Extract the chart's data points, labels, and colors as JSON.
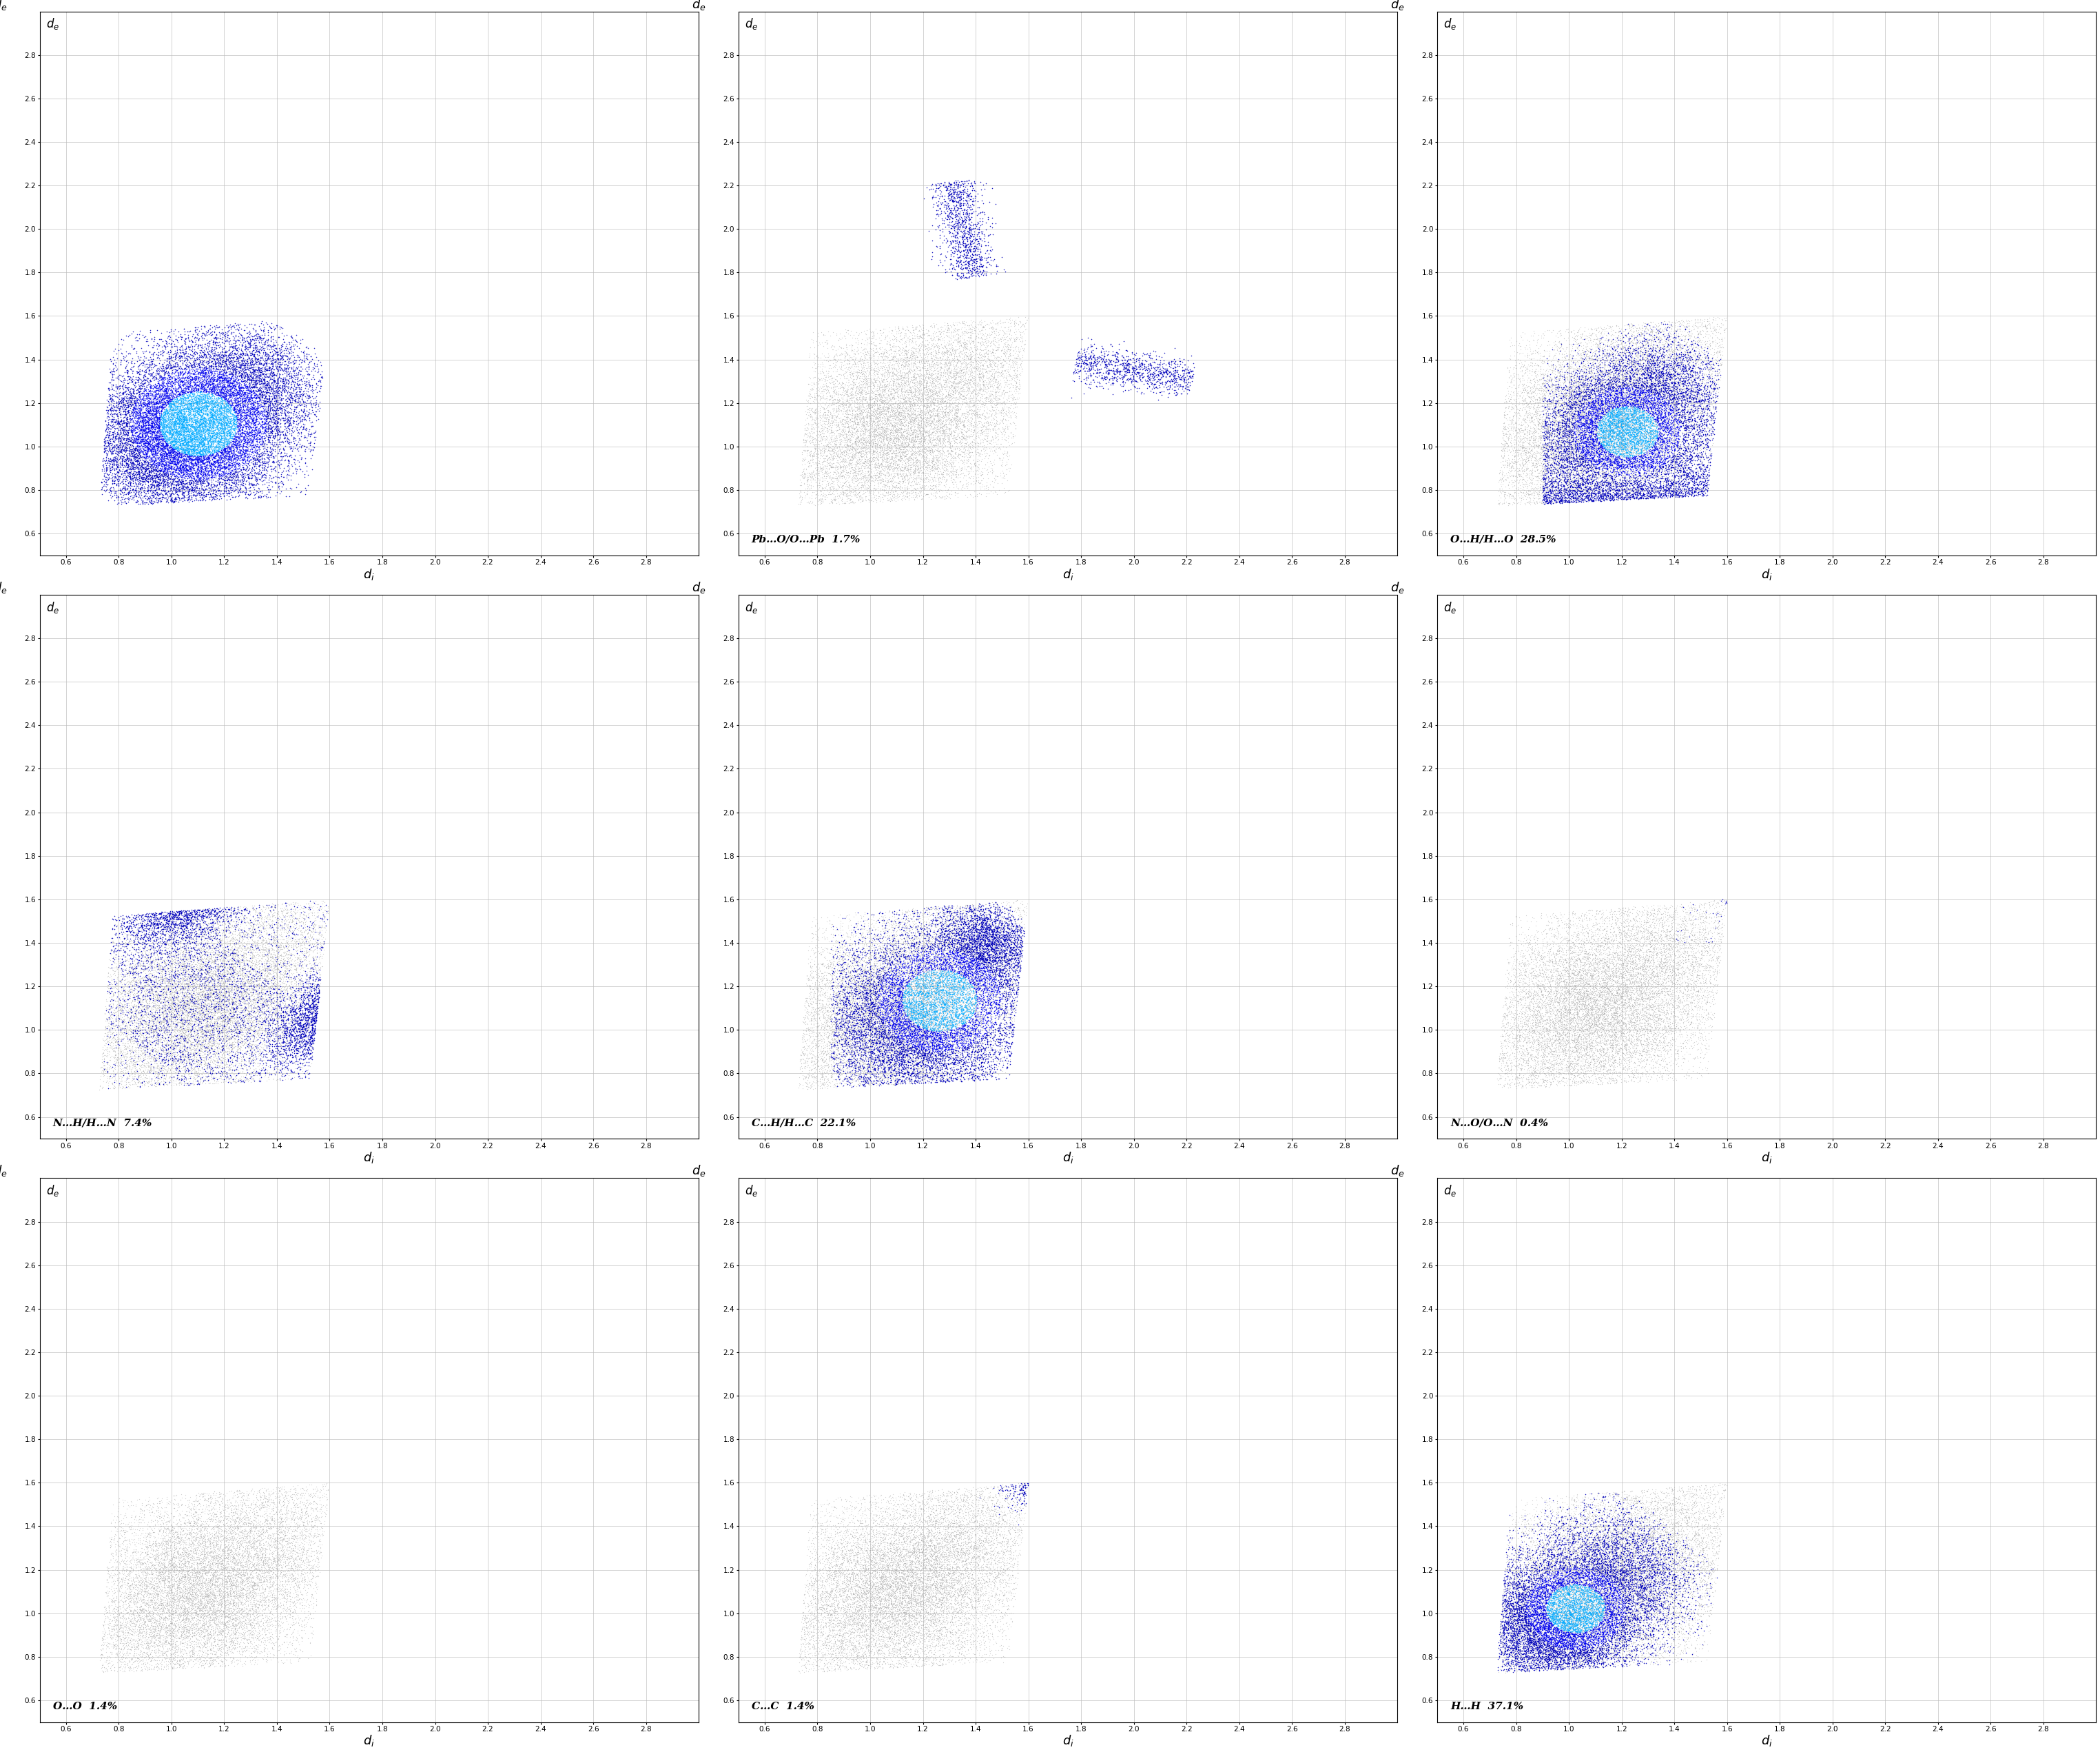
{
  "subplots": [
    {
      "label": "",
      "percentage": "",
      "row": 0,
      "col": 0
    },
    {
      "label": "Pb…O/O…Pb",
      "percentage": "1.7%",
      "row": 0,
      "col": 1
    },
    {
      "label": "O…H/H…O",
      "percentage": "28.5%",
      "row": 0,
      "col": 2
    },
    {
      "label": "N…H/H…N",
      "percentage": "7.4%",
      "row": 1,
      "col": 0
    },
    {
      "label": "C…H/H…C",
      "percentage": "22.1%",
      "row": 1,
      "col": 1
    },
    {
      "label": "N…O/O…N",
      "percentage": "0.4%",
      "row": 1,
      "col": 2
    },
    {
      "label": "O…O",
      "percentage": "1.4%",
      "row": 2,
      "col": 0
    },
    {
      "label": "C…C",
      "percentage": "1.4%",
      "row": 2,
      "col": 1
    },
    {
      "label": "H…H",
      "percentage": "37.1%",
      "row": 2,
      "col": 2
    }
  ],
  "xlim": [
    0.5,
    3.0
  ],
  "ylim": [
    0.5,
    3.0
  ],
  "xticks": [
    0.6,
    0.8,
    1.0,
    1.2,
    1.4,
    1.6,
    1.8,
    2.0,
    2.2,
    2.4,
    2.6,
    2.8
  ],
  "yticks": [
    0.6,
    0.8,
    1.0,
    1.2,
    1.4,
    1.6,
    1.8,
    2.0,
    2.2,
    2.4,
    2.6,
    2.8
  ],
  "gray_color": "#aaaaaa",
  "blue_dark": "#0000bb",
  "blue_med": "#0000ee",
  "cyan_color": "#00aaff",
  "background": "#ffffff",
  "grid_color": "#bbbbbb",
  "seed": 42
}
